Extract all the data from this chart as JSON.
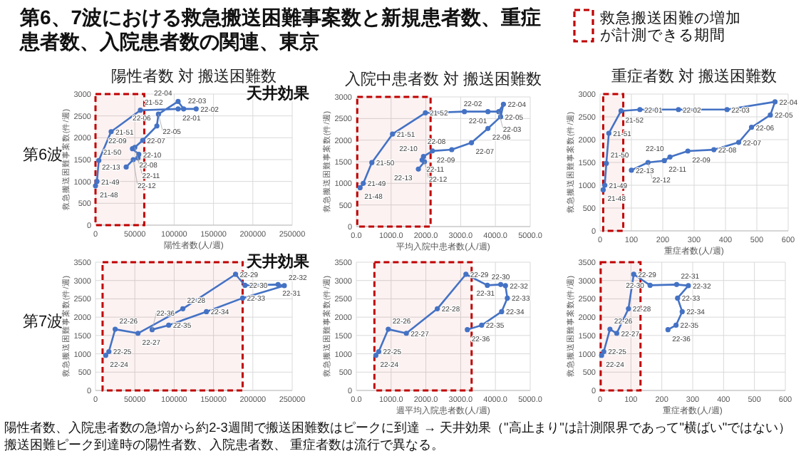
{
  "chart_data": [
    {
      "type": "line",
      "title": "陽性者数 対 搬送困難数",
      "xlabel": "陽性者数(人/週)",
      "ylabel": "救急搬送困難事案数(件/週)",
      "marker": "circle",
      "line_style": "solid",
      "grid": true,
      "xlim": [
        0,
        250000
      ],
      "xticks": [
        0,
        50000,
        100000,
        150000,
        200000,
        250000
      ],
      "ylim": [
        0,
        3000
      ],
      "yticks": [
        0,
        500,
        1000,
        1500,
        2000,
        2500,
        3000
      ],
      "x": [
        0,
        1800,
        4200,
        19900,
        57000,
        105000,
        128000,
        112000,
        105000,
        80000,
        78000,
        60000,
        50000,
        47000,
        55000,
        54000,
        48000,
        39000
      ],
      "series": [
        {
          "color": "#4472c4",
          "values": [
            900,
            1000,
            1480,
            2140,
            2630,
            2660,
            2660,
            2660,
            2830,
            2540,
            2270,
            1940,
            1780,
            1750,
            1620,
            1540,
            1500,
            1330
          ]
        }
      ],
      "bands": [
        {
          "axis": "x",
          "from": 0,
          "to": 62000,
          "color": "#c00000"
        }
      ],
      "annotations": [
        "第6波",
        "天井効果",
        {
          "text": "21-48",
          "x": 0,
          "y": 900
        },
        {
          "text": "21-49",
          "x": 1800,
          "y": 1000
        },
        {
          "text": "21-50",
          "x": 4200,
          "y": 1480
        },
        {
          "text": "21-51",
          "x": 19900,
          "y": 2140
        },
        {
          "text": "21-52",
          "x": 57000,
          "y": 2630
        },
        {
          "text": "22-01",
          "x": 105000,
          "y": 2660
        },
        {
          "text": "22-02",
          "x": 128000,
          "y": 2660
        },
        {
          "text": "22-03",
          "x": 112000,
          "y": 2660
        },
        {
          "text": "22-04",
          "x": 105000,
          "y": 2830
        },
        {
          "text": "22-05",
          "x": 80000,
          "y": 2540
        },
        {
          "text": "22-06",
          "x": 78000,
          "y": 2270
        },
        {
          "text": "22-07",
          "x": 60000,
          "y": 1940
        },
        {
          "text": "22-08",
          "x": 50000,
          "y": 1780
        },
        {
          "text": "22-09",
          "x": 47000,
          "y": 1750
        },
        {
          "text": "22-10",
          "x": 55000,
          "y": 1620
        },
        {
          "text": "22-11",
          "x": 54000,
          "y": 1540
        },
        {
          "text": "22-12",
          "x": 48000,
          "y": 1500
        },
        {
          "text": "22-13",
          "x": 39000,
          "y": 1330
        }
      ]
    },
    {
      "type": "line",
      "title": "入院中患者数 対 搬送困難数",
      "xlabel": "平均入院中患者数(人/週)",
      "ylabel": "救急搬送困難事案数(件/週)",
      "marker": "circle",
      "line_style": "solid",
      "grid": true,
      "xlim": [
        0,
        5000
      ],
      "xticks": [
        {
          "value": 0,
          "label": "0.0"
        },
        {
          "value": 1000,
          "label": "1000.0"
        },
        {
          "value": 2000,
          "label": "2000.0"
        },
        {
          "value": 3000,
          "label": "3000.0"
        },
        {
          "value": 4000,
          "label": "4000.0"
        },
        {
          "value": 5000,
          "label": "5000.0"
        }
      ],
      "ylim": [
        0,
        3000
      ],
      "yticks": [
        0,
        500,
        1000,
        1500,
        2000,
        2500,
        3000
      ],
      "x": [
        108,
        200,
        446,
        1040,
        1986,
        3108,
        3784,
        4095,
        4230,
        4149,
        3784,
        3311,
        2743,
        2189,
        1932,
        1892,
        1960,
        1784
      ],
      "series": [
        {
          "color": "#4472c4",
          "values": [
            900,
            1000,
            1480,
            2140,
            2630,
            2660,
            2660,
            2660,
            2830,
            2540,
            2270,
            1940,
            1780,
            1750,
            1620,
            1540,
            1500,
            1330
          ]
        }
      ],
      "bands": [
        {
          "axis": "x",
          "from": 27,
          "to": 2135,
          "color": "#c00000"
        }
      ],
      "annotations": [
        {
          "text": "21-48",
          "x": 108,
          "y": 900
        },
        {
          "text": "21-49",
          "x": 200,
          "y": 1000
        },
        {
          "text": "21-50",
          "x": 446,
          "y": 1480
        },
        {
          "text": "21-51",
          "x": 1040,
          "y": 2140
        },
        {
          "text": "21-52",
          "x": 1986,
          "y": 2630
        },
        {
          "text": "22-01",
          "x": 3108,
          "y": 2660
        },
        {
          "text": "22-02",
          "x": 3784,
          "y": 2660
        },
        {
          "text": "22-03",
          "x": 4095,
          "y": 2660
        },
        {
          "text": "22-04",
          "x": 4230,
          "y": 2830
        },
        {
          "text": "22-05",
          "x": 4149,
          "y": 2540
        },
        {
          "text": "22-06",
          "x": 3784,
          "y": 2270
        },
        {
          "text": "22-07",
          "x": 3311,
          "y": 1940
        },
        {
          "text": "22-08",
          "x": 2743,
          "y": 1780
        },
        {
          "text": "22-09",
          "x": 2189,
          "y": 1750
        },
        {
          "text": "22-10",
          "x": 1932,
          "y": 1620
        },
        {
          "text": "22-11",
          "x": 1892,
          "y": 1540
        },
        {
          "text": "22-12",
          "x": 1960,
          "y": 1500
        },
        {
          "text": "22-13",
          "x": 1784,
          "y": 1330
        }
      ]
    },
    {
      "type": "line",
      "title": "重症者数 対 搬送困難数",
      "xlabel": "重症者数(人/週)",
      "ylabel": "救急搬送困難事案数(件/週)",
      "marker": "circle",
      "line_style": "solid",
      "grid": true,
      "xlim": [
        0,
        600
      ],
      "xticks": [
        0,
        100,
        200,
        300,
        400,
        500,
        600
      ],
      "ylim": [
        0,
        3000
      ],
      "yticks": [
        0,
        500,
        1000,
        1500,
        2000,
        2500,
        3000
      ],
      "x": [
        10,
        15,
        20,
        28,
        67,
        127,
        250,
        405,
        558,
        543,
        483,
        442,
        363,
        280,
        223,
        205,
        153,
        100
      ],
      "series": [
        {
          "color": "#4472c4",
          "values": [
            900,
            1000,
            1480,
            2140,
            2630,
            2660,
            2660,
            2660,
            2830,
            2540,
            2270,
            1940,
            1780,
            1750,
            1620,
            1540,
            1500,
            1330
          ]
        }
      ],
      "bands": [
        {
          "axis": "x",
          "from": 10,
          "to": 74,
          "color": "#c00000",
          "label": "救急搬送困難の増加が計測できる期間"
        }
      ],
      "annotations": [
        {
          "text": "21-48",
          "x": 10,
          "y": 900
        },
        {
          "text": "21-49",
          "x": 15,
          "y": 1000
        },
        {
          "text": "21-50",
          "x": 20,
          "y": 1480
        },
        {
          "text": "21-51",
          "x": 28,
          "y": 2140
        },
        {
          "text": "21-52",
          "x": 67,
          "y": 2630
        },
        {
          "text": "22-01",
          "x": 127,
          "y": 2660
        },
        {
          "text": "22-02",
          "x": 250,
          "y": 2660
        },
        {
          "text": "22-03",
          "x": 405,
          "y": 2660
        },
        {
          "text": "22-04",
          "x": 558,
          "y": 2830
        },
        {
          "text": "22-05",
          "x": 543,
          "y": 2540
        },
        {
          "text": "22-06",
          "x": 483,
          "y": 2270
        },
        {
          "text": "22-07",
          "x": 442,
          "y": 1940
        },
        {
          "text": "22-08",
          "x": 363,
          "y": 1780
        },
        {
          "text": "22-09",
          "x": 280,
          "y": 1750
        },
        {
          "text": "22-10",
          "x": 223,
          "y": 1620
        },
        {
          "text": "22-11",
          "x": 205,
          "y": 1540
        },
        {
          "text": "22-12",
          "x": 153,
          "y": 1500
        },
        {
          "text": "22-13",
          "x": 100,
          "y": 1330
        }
      ]
    },
    {
      "type": "line",
      "ylabel": "救急搬送困難事案数(件/週)",
      "marker": "circle",
      "line_style": "solid",
      "grid": true,
      "xlim": [
        0,
        250000
      ],
      "xticks": [
        0,
        50000,
        100000,
        150000,
        200000,
        250000
      ],
      "ylim": [
        0,
        3500
      ],
      "yticks": [
        0,
        500,
        1000,
        1500,
        2000,
        2500,
        3000,
        3500
      ],
      "x": [
        13000,
        17000,
        25000,
        54000,
        111000,
        178000,
        190000,
        232000,
        240000,
        187000,
        141000,
        93000,
        72000
      ],
      "series": [
        {
          "color": "#4472c4",
          "values": [
            960,
            1060,
            1670,
            1560,
            2230,
            3170,
            2870,
            2890,
            2860,
            2520,
            2150,
            1780,
            1660
          ]
        }
      ],
      "bands": [
        {
          "axis": "x",
          "from": 9000,
          "to": 187000,
          "color": "#c00000"
        }
      ],
      "annotations": [
        "第7波",
        "天井効果",
        {
          "text": "22-24",
          "x": 13000,
          "y": 960
        },
        {
          "text": "22-25",
          "x": 17000,
          "y": 1060
        },
        {
          "text": "22-26",
          "x": 25000,
          "y": 1670
        },
        {
          "text": "22-27",
          "x": 54000,
          "y": 1560
        },
        {
          "text": "22-28",
          "x": 111000,
          "y": 2230
        },
        {
          "text": "22-29",
          "x": 178000,
          "y": 3170
        },
        {
          "text": "22-30",
          "x": 190000,
          "y": 2870
        },
        {
          "text": "22-31",
          "x": 232000,
          "y": 2890
        },
        {
          "text": "22-32",
          "x": 240000,
          "y": 2860
        },
        {
          "text": "22-33",
          "x": 187000,
          "y": 2520
        },
        {
          "text": "22-34",
          "x": 141000,
          "y": 2150
        },
        {
          "text": "22-35",
          "x": 93000,
          "y": 1780
        },
        {
          "text": "22-36",
          "x": 72000,
          "y": 1660
        }
      ]
    },
    {
      "type": "line",
      "xlabel": "週平均入院患者数(人/週)",
      "ylabel": "救急搬送困難事案数(件/週)",
      "marker": "circle",
      "line_style": "solid",
      "grid": true,
      "xlim": [
        0,
        5000
      ],
      "xticks": [
        {
          "value": 0,
          "label": "0.0"
        },
        {
          "value": 1000,
          "label": "1000.0"
        },
        {
          "value": 2000,
          "label": "2000.0"
        },
        {
          "value": 3000,
          "label": "3000.0"
        },
        {
          "value": 4000,
          "label": "4000.0"
        },
        {
          "value": 5000,
          "label": "5000.0"
        }
      ],
      "ylim": [
        0,
        3500
      ],
      "yticks": [
        0,
        500,
        1000,
        1500,
        2000,
        2500,
        3000,
        3500
      ],
      "x": [
        562,
        644,
        918,
        1438,
        2329,
        3151,
        3767,
        4151,
        4288,
        4342,
        4178,
        3603,
        3192
      ],
      "series": [
        {
          "color": "#4472c4",
          "values": [
            960,
            1060,
            1670,
            1560,
            2230,
            3170,
            2870,
            2890,
            2860,
            2520,
            2150,
            1780,
            1660
          ]
        }
      ],
      "bands": [
        {
          "axis": "x",
          "from": 520,
          "to": 3315,
          "color": "#c00000"
        }
      ],
      "annotations": [
        {
          "text": "22-24",
          "x": 562,
          "y": 960
        },
        {
          "text": "22-25",
          "x": 644,
          "y": 1060
        },
        {
          "text": "22-26",
          "x": 918,
          "y": 1670
        },
        {
          "text": "22-27",
          "x": 1438,
          "y": 1560
        },
        {
          "text": "22-28",
          "x": 2329,
          "y": 2230
        },
        {
          "text": "22-29",
          "x": 3151,
          "y": 3170
        },
        {
          "text": "22-30",
          "x": 3767,
          "y": 2870
        },
        {
          "text": "22-31",
          "x": 4151,
          "y": 2890
        },
        {
          "text": "22-32",
          "x": 4288,
          "y": 2860
        },
        {
          "text": "22-33",
          "x": 4342,
          "y": 2520
        },
        {
          "text": "22-34",
          "x": 4178,
          "y": 2150
        },
        {
          "text": "22-35",
          "x": 3603,
          "y": 1780
        },
        {
          "text": "22-36",
          "x": 3192,
          "y": 1660
        }
      ]
    },
    {
      "type": "line",
      "xlabel": "重症者数(人/週)",
      "ylabel": "救急搬送困難事案数(件/週)",
      "marker": "circle",
      "line_style": "solid",
      "grid": true,
      "xlim": [
        0,
        600
      ],
      "xticks": [
        0,
        100,
        200,
        300,
        400,
        500,
        600
      ],
      "ylim": [
        0,
        3500
      ],
      "yticks": [
        0,
        500,
        1000,
        1500,
        2000,
        2500,
        3000,
        3500
      ],
      "x": [
        5,
        12,
        32,
        54,
        92,
        109,
        162,
        248,
        286,
        251,
        266,
        246,
        220
      ],
      "series": [
        {
          "color": "#4472c4",
          "values": [
            960,
            1060,
            1670,
            1560,
            2230,
            3170,
            2870,
            2890,
            2860,
            2520,
            2150,
            1780,
            1660
          ]
        }
      ],
      "bands": [
        {
          "axis": "x",
          "from": 2,
          "to": 131,
          "color": "#c00000"
        }
      ],
      "annotations": [
        {
          "text": "22-24",
          "x": 5,
          "y": 960
        },
        {
          "text": "22-25",
          "x": 12,
          "y": 1060
        },
        {
          "text": "22-26",
          "x": 32,
          "y": 1670
        },
        {
          "text": "22-27",
          "x": 54,
          "y": 1560
        },
        {
          "text": "22-28",
          "x": 92,
          "y": 2230
        },
        {
          "text": "22-29",
          "x": 109,
          "y": 3170
        },
        {
          "text": "22-30",
          "x": 162,
          "y": 2870
        },
        {
          "text": "22-31",
          "x": 248,
          "y": 2890
        },
        {
          "text": "22-32",
          "x": 286,
          "y": 2860
        },
        {
          "text": "22-33",
          "x": 251,
          "y": 2520
        },
        {
          "text": "22-34",
          "x": 266,
          "y": 2150
        },
        {
          "text": "22-35",
          "x": 246,
          "y": 1780
        },
        {
          "text": "22-36",
          "x": 220,
          "y": 1660
        }
      ]
    },
    {
      "type": "other",
      "title": "第6、7波における救急搬送困難事案数と新規患者数、重症患者数、入院患者数の関連、東京",
      "annotations": [
        "陽性者数、入院患者数の急増から約2-3週間で搬送困難数はピークに到達 → 天井効果（\"高止まり\"は計測限界であって\"横ばい\"ではない）",
        "搬送困難ピーク到達時の陽性者数、入院患者数、 重症者数は流行で異なる。"
      ]
    }
  ]
}
